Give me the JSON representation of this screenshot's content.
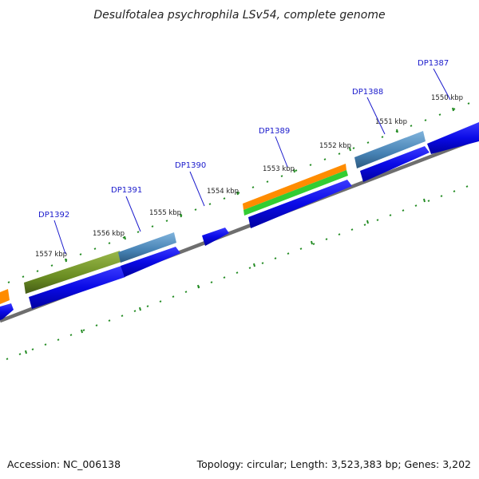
{
  "title": "Desulfotalea psychrophila LSv54, complete genome",
  "footer": {
    "accession": "Accession: NC_006138",
    "summary": "Topology: circular; Length: 3,523,383 bp; Genes: 3,202"
  },
  "colors": {
    "forward_cds": "#0a0ae6",
    "steelblue_feature": "#4682b4",
    "olive_feature": "#6b8e23",
    "orange_feature": "#ff8c00",
    "green_feature": "#32cd32",
    "backbone": "#808080",
    "ticks": "#228b22",
    "label_link": "#1a1acc"
  },
  "kbp_labels": [
    "1557 kbp",
    "1556 kbp",
    "1555 kbp",
    "1554 kbp",
    "1553 kbp",
    "1552 kbp",
    "1551 kbp",
    "1550 kbp"
  ],
  "gene_labels": [
    "DP1392",
    "DP1391",
    "DP1390",
    "DP1389",
    "DP1388",
    "DP1387"
  ]
}
